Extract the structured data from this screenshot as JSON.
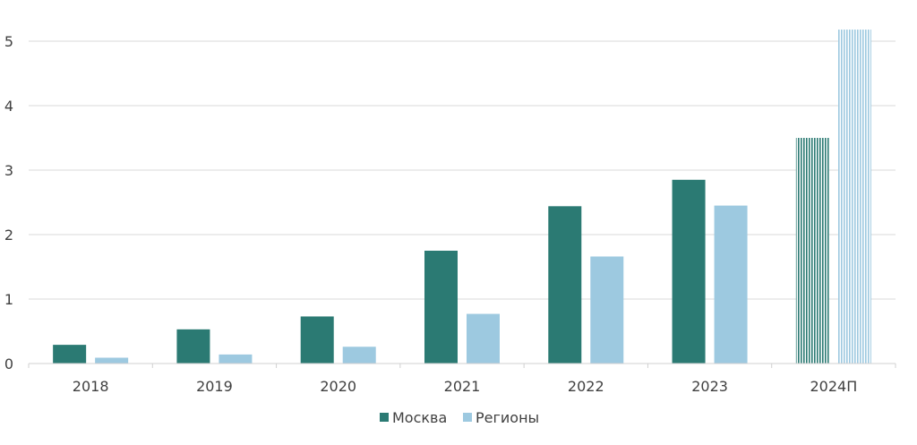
{
  "chart_data": {
    "type": "bar",
    "title": "",
    "xlabel": "",
    "ylabel": "",
    "categories": [
      "2018",
      "2019",
      "2020",
      "2021",
      "2022",
      "2023",
      "2024П"
    ],
    "series": [
      {
        "name": "Москва",
        "color": "#2b7a73",
        "values": [
          0.29,
          0.53,
          0.73,
          1.75,
          2.44,
          2.85,
          3.5
        ]
      },
      {
        "name": "Регионы",
        "color": "#9dc9e0",
        "values": [
          0.09,
          0.14,
          0.26,
          0.77,
          1.66,
          2.45,
          5.18
        ]
      }
    ],
    "forecast_categories": [
      "2024П"
    ],
    "ylim": [
      0,
      5
    ],
    "yticks": [
      0,
      1,
      2,
      3,
      4,
      5
    ],
    "grid": true,
    "legend_position": "bottom"
  }
}
